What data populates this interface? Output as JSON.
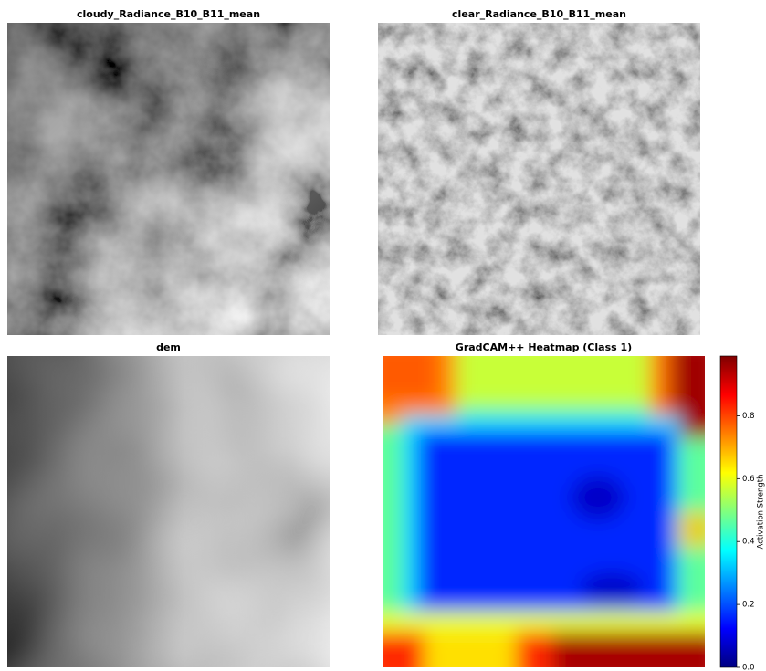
{
  "chart_data": [
    {
      "type": "image",
      "title": "cloudy_Radiance_B10_B11_mean"
    },
    {
      "type": "image",
      "title": "clear_Radiance_B10_B11_mean"
    },
    {
      "type": "image",
      "title": "dem"
    },
    {
      "type": "heatmap",
      "title": "GradCAM++ Heatmap (Class 1)",
      "colorbar": {
        "label": "Activation Strength",
        "lim": [
          0,
          0.99
        ],
        "ticks": [
          {
            "value": 0,
            "label": "0.0"
          },
          0.2,
          0.4,
          0.6,
          0.8
        ]
      }
    }
  ]
}
